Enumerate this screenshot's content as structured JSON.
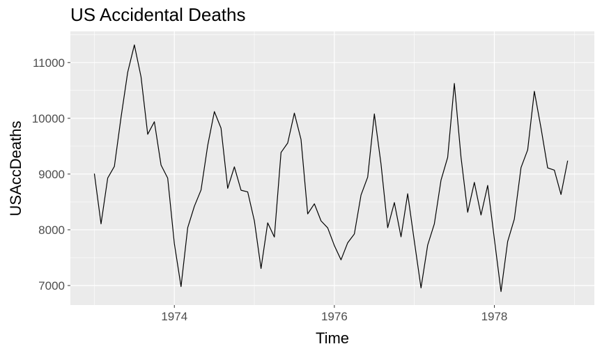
{
  "chart_data": {
    "type": "line",
    "title": "US Accidental Deaths",
    "xlabel": "Time",
    "ylabel": "USAccDeaths",
    "xlim": [
      1972.7,
      1979.25
    ],
    "ylim": [
      6650,
      11560
    ],
    "xticks": [
      1974,
      1976,
      1978
    ],
    "xtick_labels": [
      "1974",
      "1976",
      "1978"
    ],
    "yticks": [
      7000,
      8000,
      9000,
      10000,
      11000
    ],
    "ytick_labels": [
      "7000",
      "8000",
      "9000",
      "10000",
      "11000"
    ],
    "grid": true,
    "series": [
      {
        "start": 1973,
        "frequency": 12,
        "values": [
          9007,
          8106,
          8928,
          9137,
          10017,
          10826,
          11317,
          10744,
          9713,
          9938,
          9161,
          8927,
          7750,
          6981,
          8038,
          8422,
          8714,
          9512,
          10120,
          9823,
          8743,
          9129,
          8710,
          8680,
          8162,
          7306,
          8124,
          7870,
          9387,
          9556,
          10093,
          9620,
          8285,
          8466,
          8160,
          8034,
          7717,
          7461,
          7767,
          7925,
          8623,
          8945,
          10078,
          9179,
          8037,
          8488,
          7874,
          8647,
          7792,
          6957,
          7726,
          8106,
          8890,
          9299,
          10625,
          9302,
          8314,
          8850,
          8265,
          8796,
          7836,
          6892,
          7791,
          8192,
          9115,
          9434,
          10484,
          9827,
          9110,
          9070,
          8633,
          9240
        ]
      }
    ],
    "colors": {
      "panel": "#ebebeb",
      "grid_major": "#ffffff",
      "line": "#000000"
    }
  }
}
